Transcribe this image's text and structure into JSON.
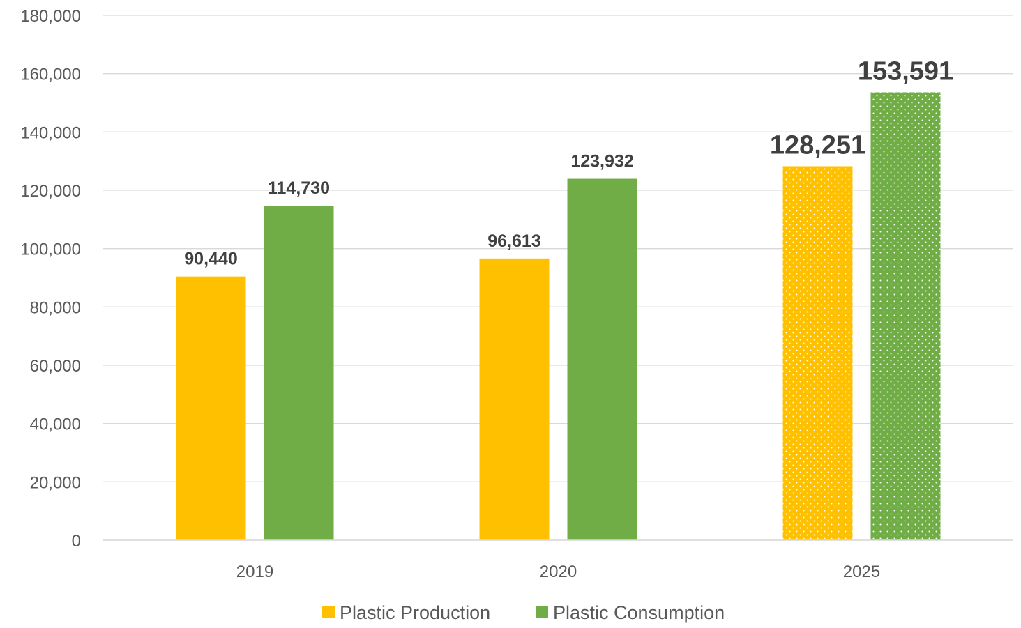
{
  "chart_data": {
    "type": "bar",
    "title": "",
    "xlabel": "",
    "ylabel": "",
    "categories": [
      "2019",
      "2020",
      "2025"
    ],
    "series": [
      {
        "name": "Plastic Production",
        "values": [
          90440,
          96613,
          128251
        ],
        "color": "#FFC000"
      },
      {
        "name": "Plastic Consumption",
        "values": [
          114730,
          123932,
          153591
        ],
        "color": "#70AD47"
      }
    ],
    "data_labels": [
      [
        "90,440",
        "96,613",
        "128,251"
      ],
      [
        "114,730",
        "123,932",
        "153,591"
      ]
    ],
    "projected_categories": [
      "2025"
    ],
    "ylim": [
      0,
      180000
    ],
    "y_ticks": [
      "0",
      "20,000",
      "40,000",
      "60,000",
      "80,000",
      "100,000",
      "120,000",
      "140,000",
      "160,000",
      "180,000"
    ],
    "grid": true,
    "legend_position": "bottom"
  }
}
